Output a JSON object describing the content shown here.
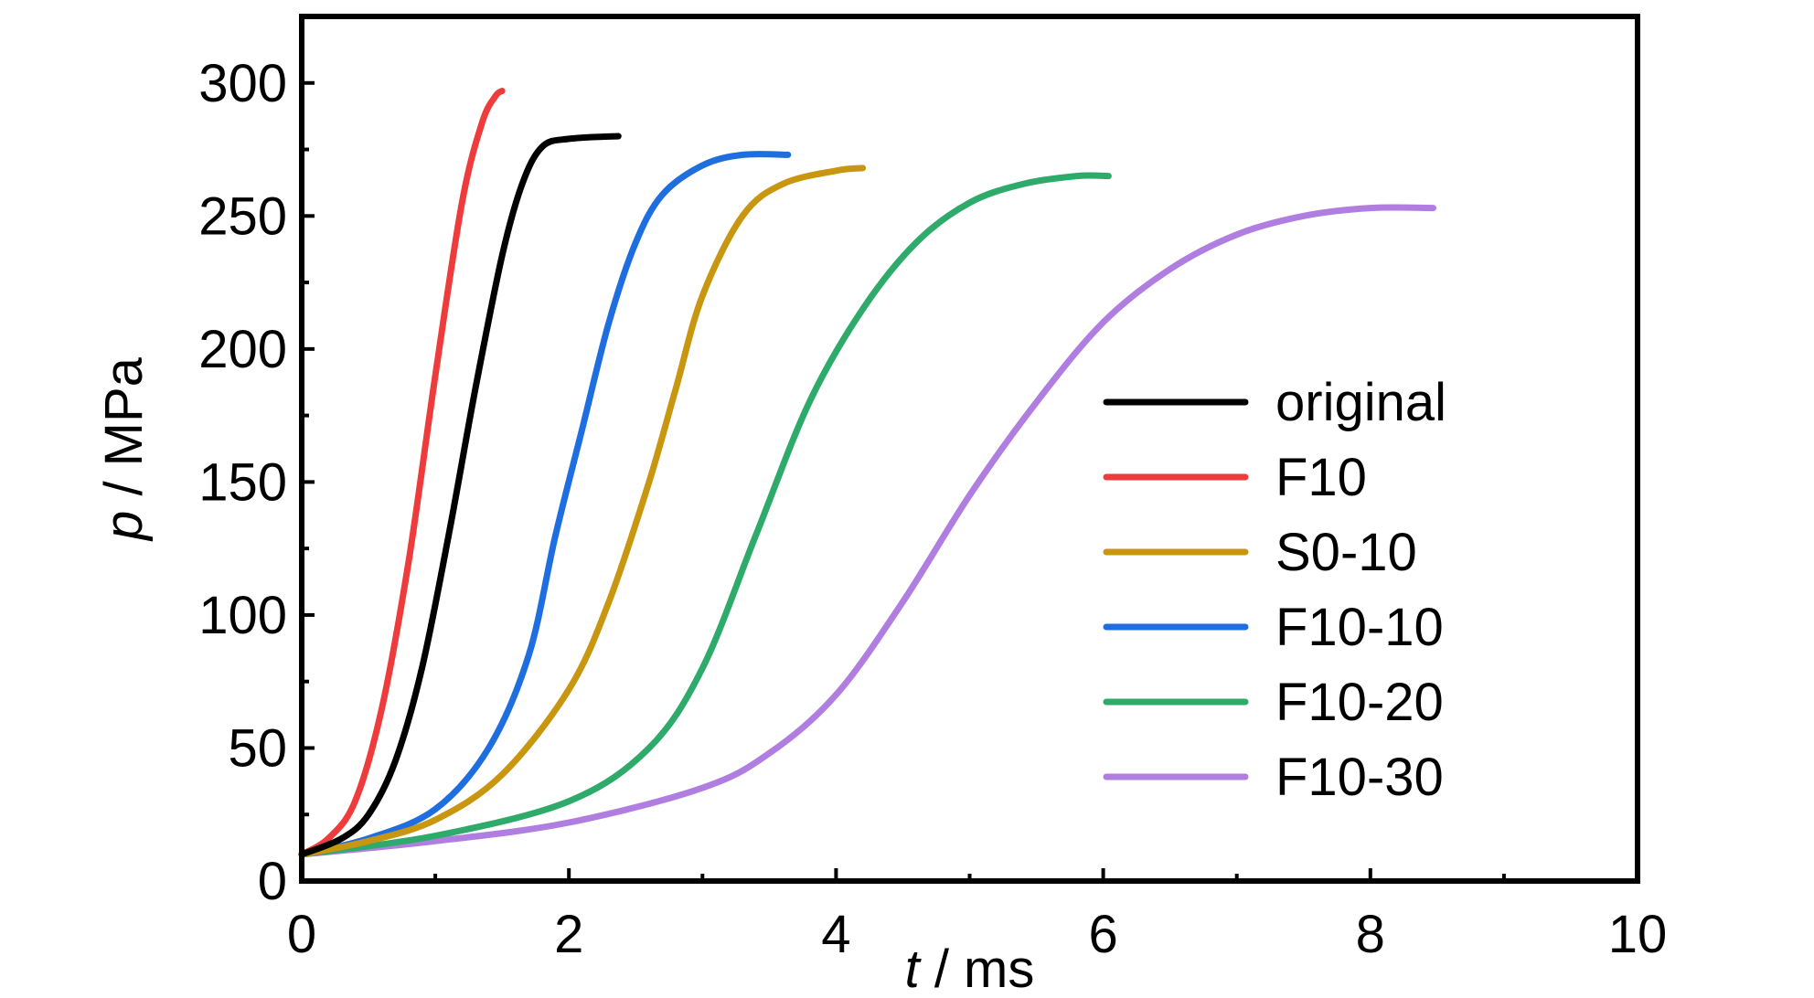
{
  "chart_data": {
    "type": "line",
    "xlabel": {
      "var": "t",
      "unit": " / ms"
    },
    "ylabel": {
      "var": "p",
      "unit": " / MPa"
    },
    "xlim": [
      0,
      10
    ],
    "ylim": [
      0,
      325
    ],
    "x_ticks": [
      0,
      2,
      4,
      6,
      8,
      10
    ],
    "y_ticks": [
      0,
      50,
      100,
      150,
      200,
      250,
      300
    ],
    "x_ticks_labels": [
      "0",
      "2",
      "4",
      "6",
      "8",
      "10"
    ],
    "y_ticks_labels": [
      "0",
      "50",
      "100",
      "150",
      "200",
      "250",
      "300"
    ],
    "grid": false,
    "legend_position": "right",
    "legend_order": [
      "original",
      "F10",
      "S0-10",
      "F10-10",
      "F10-20",
      "F10-30"
    ],
    "series": [
      {
        "name": "original",
        "color": "#000000",
        "points": [
          [
            0,
            10
          ],
          [
            0.3,
            16
          ],
          [
            0.5,
            25
          ],
          [
            0.7,
            45
          ],
          [
            0.9,
            80
          ],
          [
            1.1,
            130
          ],
          [
            1.3,
            185
          ],
          [
            1.5,
            235
          ],
          [
            1.65,
            262
          ],
          [
            1.8,
            276
          ],
          [
            2.0,
            279
          ],
          [
            2.37,
            280
          ]
        ]
      },
      {
        "name": "F10",
        "color": "#ee3c3c",
        "points": [
          [
            0,
            10
          ],
          [
            0.2,
            16
          ],
          [
            0.4,
            30
          ],
          [
            0.6,
            65
          ],
          [
            0.8,
            120
          ],
          [
            1.0,
            190
          ],
          [
            1.2,
            255
          ],
          [
            1.35,
            285
          ],
          [
            1.45,
            295
          ],
          [
            1.5,
            297
          ]
        ]
      },
      {
        "name": "S0-10",
        "color": "#c8960f",
        "points": [
          [
            0,
            10
          ],
          [
            0.5,
            15
          ],
          [
            1.0,
            23
          ],
          [
            1.5,
            40
          ],
          [
            2.0,
            72
          ],
          [
            2.3,
            105
          ],
          [
            2.6,
            150
          ],
          [
            2.8,
            185
          ],
          [
            3.0,
            220
          ],
          [
            3.3,
            250
          ],
          [
            3.6,
            262
          ],
          [
            4.0,
            267
          ],
          [
            4.2,
            268
          ]
        ]
      },
      {
        "name": "F10-10",
        "color": "#1f6ee0",
        "points": [
          [
            0,
            10
          ],
          [
            0.5,
            16
          ],
          [
            1.0,
            27
          ],
          [
            1.4,
            50
          ],
          [
            1.7,
            85
          ],
          [
            1.9,
            130
          ],
          [
            2.1,
            170
          ],
          [
            2.3,
            210
          ],
          [
            2.5,
            240
          ],
          [
            2.7,
            258
          ],
          [
            3.0,
            269
          ],
          [
            3.3,
            273
          ],
          [
            3.64,
            273
          ]
        ]
      },
      {
        "name": "F10-20",
        "color": "#2eaa6a",
        "points": [
          [
            0,
            10
          ],
          [
            1.0,
            17
          ],
          [
            2.0,
            30
          ],
          [
            2.6,
            50
          ],
          [
            3.0,
            80
          ],
          [
            3.4,
            130
          ],
          [
            3.8,
            180
          ],
          [
            4.2,
            215
          ],
          [
            4.6,
            240
          ],
          [
            5.0,
            255
          ],
          [
            5.4,
            262
          ],
          [
            5.8,
            265
          ],
          [
            6.04,
            265
          ]
        ]
      },
      {
        "name": "F10-30",
        "color": "#b07ee0",
        "points": [
          [
            0,
            10
          ],
          [
            1.0,
            15
          ],
          [
            2.0,
            22
          ],
          [
            3.0,
            35
          ],
          [
            3.5,
            48
          ],
          [
            4.0,
            70
          ],
          [
            4.5,
            105
          ],
          [
            5.0,
            145
          ],
          [
            5.5,
            180
          ],
          [
            6.0,
            210
          ],
          [
            6.5,
            230
          ],
          [
            7.0,
            243
          ],
          [
            7.5,
            250
          ],
          [
            8.0,
            253
          ],
          [
            8.47,
            253
          ]
        ]
      }
    ]
  }
}
